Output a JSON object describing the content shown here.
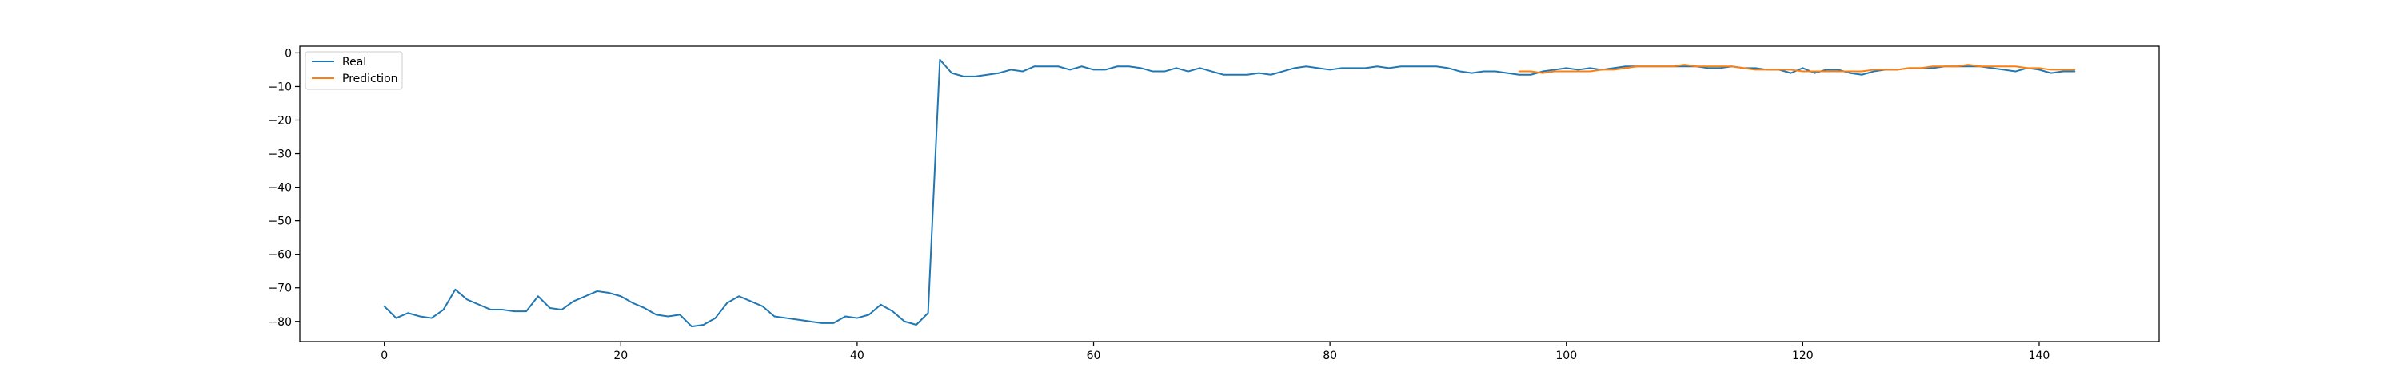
{
  "chart_data": {
    "type": "line",
    "title": "",
    "xlabel": "",
    "ylabel": "",
    "xlim": [
      -7.15,
      150.15
    ],
    "ylim": [
      -86,
      2
    ],
    "xticks": [
      0,
      20,
      40,
      60,
      80,
      100,
      120,
      140
    ],
    "yticks": [
      0,
      -10,
      -20,
      -30,
      -40,
      -50,
      -60,
      -70,
      -80
    ],
    "grid": false,
    "legend": {
      "location": "top-left",
      "entries": [
        "Real",
        "Prediction"
      ]
    },
    "series": [
      {
        "name": "Real",
        "color": "#1f77b4",
        "x": [
          0,
          1,
          2,
          3,
          4,
          5,
          6,
          7,
          8,
          9,
          10,
          11,
          12,
          13,
          14,
          15,
          16,
          17,
          18,
          19,
          20,
          21,
          22,
          23,
          24,
          25,
          26,
          27,
          28,
          29,
          30,
          31,
          32,
          33,
          34,
          35,
          36,
          37,
          38,
          39,
          40,
          41,
          42,
          43,
          44,
          45,
          46,
          47,
          48,
          49,
          50,
          51,
          52,
          53,
          54,
          55,
          56,
          57,
          58,
          59,
          60,
          61,
          62,
          63,
          64,
          65,
          66,
          67,
          68,
          69,
          70,
          71,
          72,
          73,
          74,
          75,
          76,
          77,
          78,
          79,
          80,
          81,
          82,
          83,
          84,
          85,
          86,
          87,
          88,
          89,
          90,
          91,
          92,
          93,
          94,
          95,
          96,
          97,
          98,
          99,
          100,
          101,
          102,
          103,
          104,
          105,
          106,
          107,
          108,
          109,
          110,
          111,
          112,
          113,
          114,
          115,
          116,
          117,
          118,
          119,
          120,
          121,
          122,
          123,
          124,
          125,
          126,
          127,
          128,
          129,
          130,
          131,
          132,
          133,
          134,
          135,
          136,
          137,
          138,
          139,
          140,
          141,
          142,
          143
        ],
        "y": [
          -75.5,
          -79,
          -77.5,
          -78.5,
          -79,
          -76.5,
          -70.5,
          -73.5,
          -75,
          -76.5,
          -76.5,
          -77,
          -77,
          -72.5,
          -76,
          -76.5,
          -74,
          -72.5,
          -71,
          -71.5,
          -72.5,
          -74.5,
          -76,
          -78,
          -78.5,
          -78,
          -81.5,
          -81,
          -79,
          -74.5,
          -72.5,
          -74,
          -75.5,
          -78.5,
          -79,
          -79.5,
          -80,
          -80.5,
          -80.5,
          -78.5,
          -79,
          -78,
          -75,
          -77,
          -80,
          -81,
          -77.5,
          -2,
          -6,
          -7,
          -7,
          -6.5,
          -6,
          -5,
          -5.5,
          -4,
          -4,
          -4,
          -5,
          -4,
          -5,
          -5,
          -4,
          -4,
          -4.5,
          -5.5,
          -5.5,
          -4.5,
          -5.5,
          -4.5,
          -5.5,
          -6.5,
          -6.5,
          -6.5,
          -6,
          -6.5,
          -5.5,
          -4.5,
          -4,
          -4.5,
          -5,
          -4.5,
          -4.5,
          -4.5,
          -4,
          -4.5,
          -4,
          -4,
          -4,
          -4,
          -4.5,
          -5.5,
          -6,
          -5.5,
          -5.5,
          -6,
          -6.5,
          -6.5,
          -5.5,
          -5,
          -4.5,
          -5,
          -4.5,
          -5,
          -4.5,
          -4,
          -4,
          -4,
          -4,
          -4,
          -4,
          -4,
          -4.5,
          -4.5,
          -4,
          -4.5,
          -4.5,
          -5,
          -5,
          -6,
          -4.5,
          -6,
          -5,
          -5,
          -6,
          -6.5,
          -5.5,
          -5,
          -5,
          -4.5,
          -4.5,
          -4.5,
          -4,
          -4,
          -4,
          -4,
          -4.5,
          -5,
          -5.5,
          -4.5,
          -5,
          -6,
          -5.5,
          -5.5
        ]
      },
      {
        "name": "Prediction",
        "color": "#ff7f0e",
        "x": [
          96,
          97,
          98,
          99,
          100,
          101,
          102,
          103,
          104,
          105,
          106,
          107,
          108,
          109,
          110,
          111,
          112,
          113,
          114,
          115,
          116,
          117,
          118,
          119,
          120,
          121,
          122,
          123,
          124,
          125,
          126,
          127,
          128,
          129,
          130,
          131,
          132,
          133,
          134,
          135,
          136,
          137,
          138,
          139,
          140,
          141,
          142,
          143
        ],
        "y": [
          -5.5,
          -5.5,
          -6,
          -5.5,
          -5.5,
          -5.5,
          -5.5,
          -5,
          -5,
          -4.5,
          -4,
          -4,
          -4,
          -4,
          -3.5,
          -4,
          -4,
          -4,
          -4,
          -4.5,
          -5,
          -5,
          -5,
          -5,
          -5.5,
          -5.5,
          -5.5,
          -5.5,
          -5.5,
          -5.5,
          -5,
          -5,
          -5,
          -4.5,
          -4.5,
          -4,
          -4,
          -4,
          -3.5,
          -4,
          -4,
          -4,
          -4,
          -4.5,
          -4.5,
          -5,
          -5,
          -5
        ]
      }
    ]
  }
}
